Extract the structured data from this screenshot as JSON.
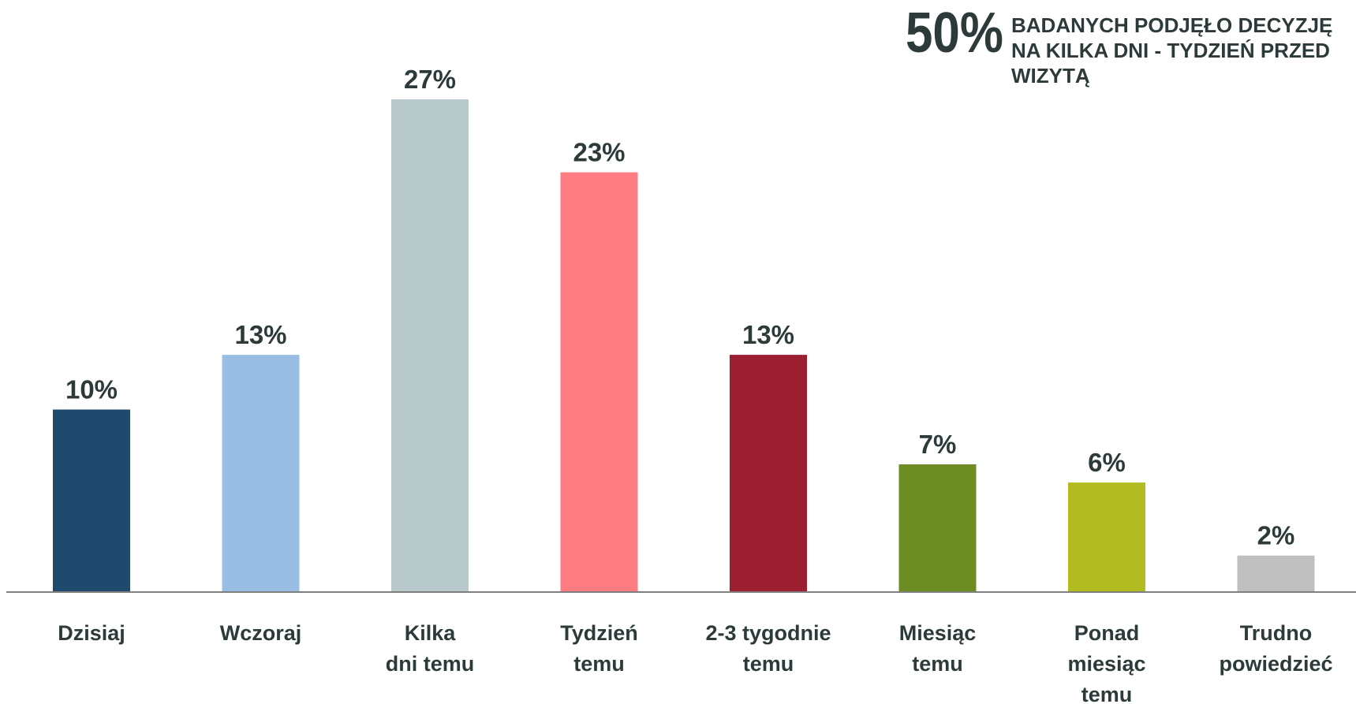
{
  "callout": {
    "value": "50%",
    "text": "BADANYCH PODJĘŁO DECYZJĘ NA KILKA DNI - TYDZIEŃ PRZED WIZYTĄ"
  },
  "chart_data": {
    "type": "bar",
    "title": "",
    "xlabel": "",
    "ylabel": "",
    "ylim": [
      0,
      27
    ],
    "grid": false,
    "categories": [
      [
        "Dzisiaj"
      ],
      [
        "Wczoraj"
      ],
      [
        "Kilka",
        "dni temu"
      ],
      [
        "Tydzień",
        "temu"
      ],
      [
        "2-3 tygodnie",
        "temu"
      ],
      [
        "Miesiąc",
        "temu"
      ],
      [
        "Ponad",
        "miesiąc",
        "temu"
      ],
      [
        "Trudno",
        "powiedzieć"
      ]
    ],
    "values": [
      10,
      13,
      27,
      23,
      13,
      7,
      6,
      2
    ],
    "value_labels": [
      "10%",
      "13%",
      "27%",
      "23%",
      "13%",
      "7%",
      "6%",
      "2%"
    ],
    "colors": [
      "#1f4a6e",
      "#9abde3",
      "#b8c9cc",
      "#ff7b82",
      "#9b1f31",
      "#6e8c24",
      "#b2bb20",
      "#bfbfbf"
    ],
    "axis_color": "#7f7f7f"
  }
}
